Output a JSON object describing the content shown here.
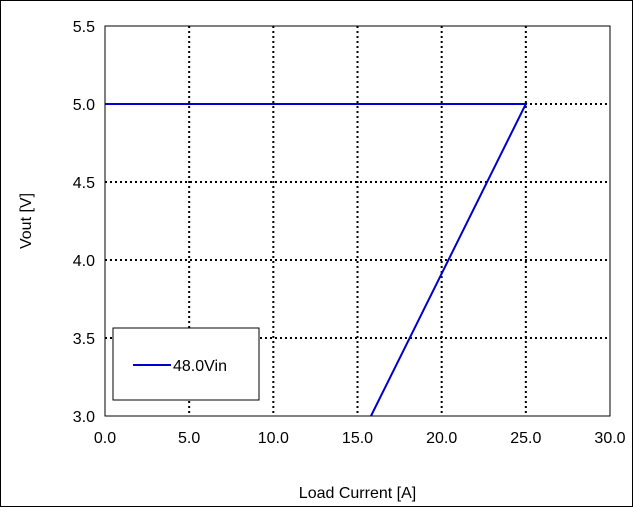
{
  "chart_data": {
    "type": "line",
    "title": "",
    "xlabel": "Load Current [A]",
    "ylabel": "Vout [V]",
    "xlim": [
      0.0,
      30.0
    ],
    "ylim": [
      3.0,
      5.5
    ],
    "x_ticks": [
      "0.0",
      "5.0",
      "10.0",
      "15.0",
      "20.0",
      "25.0",
      "30.0"
    ],
    "y_ticks": [
      "3.0",
      "3.5",
      "4.0",
      "4.5",
      "5.0",
      "5.5"
    ],
    "grid": true,
    "legend_position": "bottom-left",
    "series": [
      {
        "name": "48.0Vin",
        "color": "#0000cc",
        "x": [
          0.0,
          25.0,
          15.8
        ],
        "y": [
          5.0,
          5.0,
          3.0
        ]
      }
    ]
  }
}
